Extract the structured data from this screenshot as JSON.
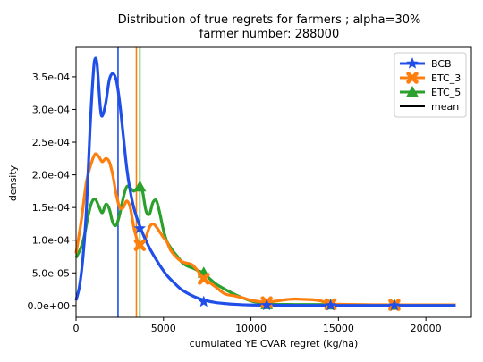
{
  "chart_data": {
    "type": "line",
    "title": "Distribution of true regrets for farmers ; alpha=30%",
    "subtitle": "farmer number: 288000",
    "xlabel": "cumulated YE CVAR regret (kg/ha)",
    "ylabel": "density",
    "xlim": [
      0,
      22600
    ],
    "ylim": [
      -1.8e-05,
      0.000395
    ],
    "xticks": [
      0,
      5000,
      10000,
      15000,
      20000
    ],
    "xtick_labels": [
      "0",
      "5000",
      "10000",
      "15000",
      "20000"
    ],
    "yticks": [
      0,
      5e-05,
      0.0001,
      0.00015,
      0.0002,
      0.00025,
      0.0003,
      0.00035
    ],
    "ytick_labels": [
      "0.0e+00",
      "5.0e-05",
      "1.0e-04",
      "1.5e-04",
      "2.0e-04",
      "2.5e-04",
      "3.0e-04",
      "3.5e-04"
    ],
    "legend_position": "top-right",
    "legend": [
      "BCB",
      "ETC_3",
      "ETC_5",
      "mean"
    ],
    "series": [
      {
        "name": "BCB",
        "color": "#1f4fe8",
        "marker": "star",
        "mean": 2400,
        "marker_points": [
          [
            3650,
            0.000118
          ],
          [
            7300,
            5.8e-06
          ],
          [
            10900,
            5e-07
          ],
          [
            14550,
            2e-07
          ],
          [
            18200,
            1e-07
          ]
        ],
        "x": [
          0,
          200,
          400,
          600,
          800,
          1000,
          1100,
          1200,
          1300,
          1400,
          1500,
          1700,
          1900,
          2100,
          2300,
          2500,
          2700,
          2900,
          3100,
          3300,
          3500,
          3700,
          3900,
          4200,
          4500,
          4800,
          5200,
          5600,
          6000,
          6500,
          7000,
          7500,
          8000,
          8500,
          9000,
          9500,
          10000,
          11000,
          12000,
          14000,
          16000,
          18000,
          20000,
          21700
        ],
        "y": [
          8e-06,
          3e-05,
          7.5e-05,
          0.00015,
          0.00027,
          0.00036,
          0.000378,
          0.00037,
          0.000335,
          0.0003,
          0.00029,
          0.00031,
          0.000345,
          0.000355,
          0.000345,
          0.00031,
          0.00026,
          0.00021,
          0.000175,
          0.00015,
          0.000132,
          0.000118,
          0.000105,
          8.8e-05,
          7.4e-05,
          6.1e-05,
          4.6e-05,
          3.5e-05,
          2.5e-05,
          1.7e-05,
          1.1e-05,
          7e-06,
          4.5e-06,
          3e-06,
          2e-06,
          1.2e-06,
          8e-07,
          5e-07,
          3e-07,
          2e-07,
          1e-07,
          1e-07,
          1e-07,
          1e-07
        ]
      },
      {
        "name": "ETC_3",
        "color": "#ff7f0e",
        "marker": "x",
        "mean": 3450,
        "marker_points": [
          [
            3650,
            9.25e-05
          ],
          [
            7300,
            4.1e-05
          ],
          [
            10900,
            5e-06
          ],
          [
            14550,
            2e-06
          ],
          [
            18200,
            1e-06
          ]
        ],
        "x": [
          0,
          300,
          600,
          900,
          1100,
          1300,
          1500,
          1700,
          1900,
          2100,
          2300,
          2500,
          2700,
          2900,
          3100,
          3300,
          3500,
          3650,
          3800,
          4000,
          4200,
          4400,
          4600,
          4800,
          5000,
          5200,
          5400,
          5700,
          6000,
          6300,
          6600,
          6900,
          7300,
          7600,
          8000,
          8500,
          9000,
          9500,
          10000,
          10500,
          10900,
          11500,
          12000,
          12500,
          13000,
          13500,
          14000,
          14550,
          15000,
          16000,
          17000,
          18200,
          19000,
          20000,
          21700
        ],
        "y": [
          8e-05,
          0.00013,
          0.00019,
          0.00022,
          0.000232,
          0.000228,
          0.00022,
          0.000225,
          0.00022,
          0.0002,
          0.00017,
          0.00015,
          0.00015,
          0.00016,
          0.00015,
          0.00012,
          0.0001,
          9.25e-05,
          9.5e-05,
          0.000105,
          0.00012,
          0.000125,
          0.00012,
          0.000112,
          0.000104,
          9.75e-05,
          8.5e-05,
          7.5e-05,
          6.8e-05,
          6.5e-05,
          6.3e-05,
          5.5e-05,
          4.1e-05,
          3.6e-05,
          2.8e-05,
          1.8e-05,
          1.5e-05,
          1.2e-05,
          8e-06,
          6e-06,
          5e-06,
          7e-06,
          9e-06,
          1e-05,
          9.5e-06,
          9e-06,
          7e-06,
          2e-06,
          2e-06,
          1.5e-06,
          1.2e-06,
          1e-06,
          1e-06,
          1e-06,
          1e-06
        ]
      },
      {
        "name": "ETC_5",
        "color": "#2ca02c",
        "marker": "triangle",
        "mean": 3650,
        "marker_points": [
          [
            3650,
            0.000182
          ],
          [
            7300,
            5e-05
          ],
          [
            10900,
            2e-06
          ],
          [
            14550,
            1.5e-06
          ],
          [
            18200,
            1e-06
          ]
        ],
        "x": [
          0,
          300,
          500,
          700,
          900,
          1100,
          1300,
          1500,
          1700,
          1900,
          2100,
          2300,
          2500,
          2700,
          2900,
          3100,
          3300,
          3500,
          3650,
          3800,
          4000,
          4200,
          4400,
          4600,
          4800,
          5000,
          5200,
          5500,
          5800,
          6100,
          6400,
          6700,
          7000,
          7300,
          7600,
          8000,
          8500,
          9000,
          9500,
          10000,
          10500,
          10900,
          11500,
          12500,
          13500,
          14550,
          15500,
          16500,
          17500,
          18200,
          19000,
          20000,
          21700
        ],
        "y": [
          7.3e-05,
          9e-05,
          0.00011,
          0.000138,
          0.000158,
          0.000163,
          0.000152,
          0.000142,
          0.000155,
          0.000148,
          0.000127,
          0.000123,
          0.00014,
          0.000165,
          0.000182,
          0.00018,
          0.000175,
          0.00018,
          0.000182,
          0.000175,
          0.000145,
          0.00014,
          0.000158,
          0.00016,
          0.00014,
          0.000115,
          9.8e-05,
          8.5e-05,
          7.5e-05,
          6.5e-05,
          6e-05,
          5.7e-05,
          5.3e-05,
          5e-05,
          4.2e-05,
          3.3e-05,
          2.5e-05,
          1.8e-05,
          1.2e-05,
          7e-06,
          4e-06,
          2e-06,
          1.7e-06,
          1.6e-06,
          1.5e-06,
          1.5e-06,
          1.2e-06,
          1.1e-06,
          1e-06,
          1e-06,
          1e-06,
          1e-06,
          1e-06
        ]
      }
    ]
  }
}
